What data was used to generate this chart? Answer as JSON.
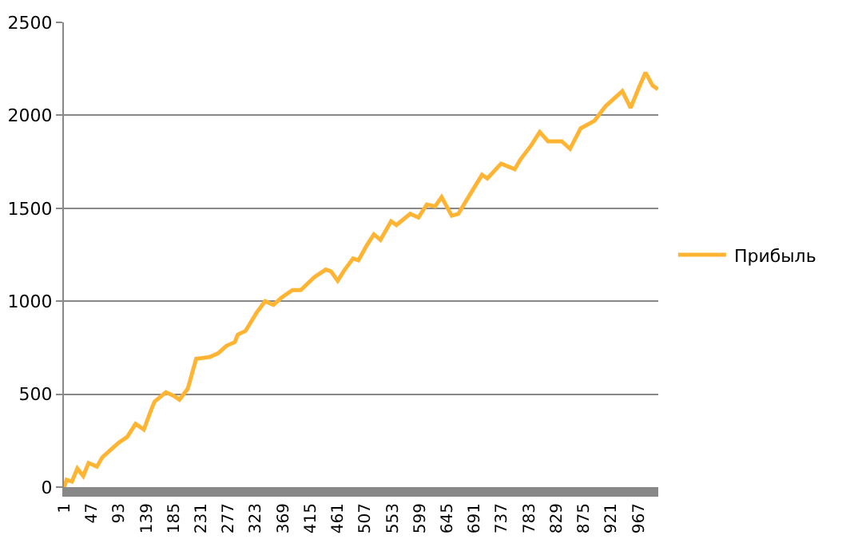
{
  "chart_data": {
    "type": "line",
    "legend": "right",
    "grid": "y",
    "ylim": [
      0,
      2500
    ],
    "yticks": [
      0,
      500,
      1000,
      1500,
      2000,
      2500
    ],
    "xlim": [
      0.5,
      1000.5
    ],
    "xticks": [
      1,
      47,
      93,
      139,
      185,
      231,
      277,
      323,
      369,
      415,
      461,
      507,
      553,
      599,
      645,
      691,
      737,
      783,
      829,
      875,
      921,
      967
    ],
    "x": [
      1,
      5,
      14,
      23,
      33,
      42,
      56,
      65,
      79,
      93,
      107,
      121,
      135,
      149,
      153,
      172,
      186,
      195,
      209,
      223,
      246,
      260,
      274,
      288,
      293,
      306,
      325,
      339,
      353,
      367,
      385,
      399,
      422,
      441,
      450,
      461,
      473,
      487,
      496,
      510,
      522,
      533,
      551,
      560,
      583,
      597,
      611,
      625,
      636,
      653,
      664,
      681,
      704,
      713,
      736,
      759,
      768,
      787,
      801,
      815,
      838,
      852,
      870,
      893,
      912,
      940,
      954,
      968,
      979,
      991,
      1000
    ],
    "series": [
      {
        "name": "Прибыль",
        "color": "#ffb433",
        "values": [
          0,
          40,
          30,
          100,
          60,
          130,
          110,
          160,
          200,
          240,
          270,
          340,
          310,
          430,
          460,
          510,
          490,
          470,
          530,
          690,
          700,
          720,
          760,
          780,
          820,
          840,
          940,
          1000,
          980,
          1020,
          1060,
          1060,
          1130,
          1170,
          1160,
          1110,
          1170,
          1230,
          1220,
          1300,
          1360,
          1330,
          1430,
          1410,
          1470,
          1450,
          1520,
          1510,
          1560,
          1460,
          1470,
          1560,
          1680,
          1660,
          1740,
          1710,
          1760,
          1840,
          1910,
          1860,
          1860,
          1820,
          1930,
          1970,
          2050,
          2130,
          2040,
          2150,
          2230,
          2160,
          2140
        ]
      }
    ]
  }
}
